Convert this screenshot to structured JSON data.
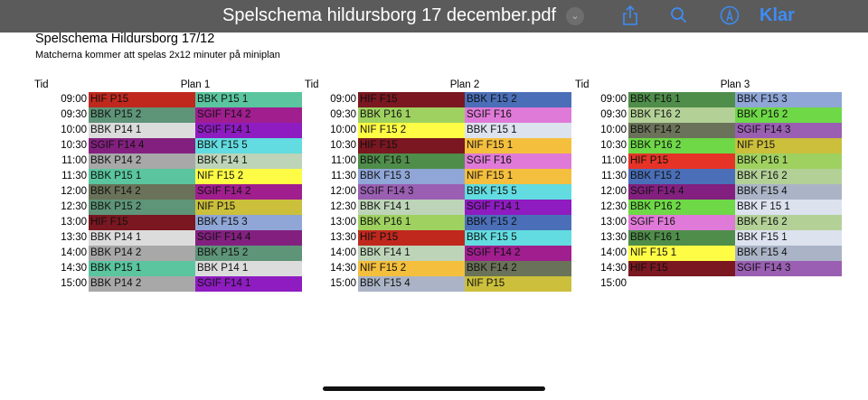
{
  "topbar": {
    "title": "Spelschema hildursborg 17 december.pdf",
    "klar": "Klar",
    "icons": [
      "chevron-down-icon",
      "share-icon",
      "search-icon",
      "markup-icon"
    ]
  },
  "document": {
    "title": "Spelschema Hildursborg 17/12",
    "subtitle": "Matcherna kommer att spelas 2x12 minuter på miniplan",
    "tid_label": "Tid"
  },
  "plans": [
    {
      "name": "Plan 1",
      "rows": [
        {
          "time": "09:00",
          "a": {
            "t": "HIF P15",
            "c": "#c0281e"
          },
          "b": {
            "t": "BBK P15 1",
            "c": "#5ac59f"
          }
        },
        {
          "time": "09:30",
          "a": {
            "t": "BBK P15 2",
            "c": "#5e9478"
          },
          "b": {
            "t": "SGIF F14 2",
            "c": "#a01e8e"
          }
        },
        {
          "time": "10:00",
          "a": {
            "t": "BBK P14 1",
            "c": "#dcdcdc"
          },
          "b": {
            "t": "SGIF F14 1",
            "c": "#8e1cc0"
          }
        },
        {
          "time": "10:30",
          "a": {
            "t": "SGIF F14 4",
            "c": "#83207f"
          },
          "b": {
            "t": "BBK F15 5",
            "c": "#62dce0"
          }
        },
        {
          "time": "11:00",
          "a": {
            "t": "BBK P14 2",
            "c": "#a8a8a8"
          },
          "b": {
            "t": "BBK F14 1",
            "c": "#bdd4b8"
          }
        },
        {
          "time": "11:30",
          "a": {
            "t": "BBK P15 1",
            "c": "#5ac59f"
          },
          "b": {
            "t": "NIF F15 2",
            "c": "#fffc45"
          }
        },
        {
          "time": "12:00",
          "a": {
            "t": "BBK F14 2",
            "c": "#6a7359"
          },
          "b": {
            "t": "SGIF F14 2",
            "c": "#a01e8e"
          }
        },
        {
          "time": "12:30",
          "a": {
            "t": "BBK P15 2",
            "c": "#5e9478"
          },
          "b": {
            "t": "NIF P15",
            "c": "#cbbf3c"
          }
        },
        {
          "time": "13:00",
          "a": {
            "t": "HIF F15",
            "c": "#7a1720"
          },
          "b": {
            "t": "BBK F15 3",
            "c": "#8fa6d6"
          }
        },
        {
          "time": "13:30",
          "a": {
            "t": "BBK P14 1",
            "c": "#dcdcdc"
          },
          "b": {
            "t": "SGIF F14 4",
            "c": "#83207f"
          }
        },
        {
          "time": "14:00",
          "a": {
            "t": "BBK P14 2",
            "c": "#a8a8a8"
          },
          "b": {
            "t": "BBK P15 2",
            "c": "#5e9478"
          }
        },
        {
          "time": "14:30",
          "a": {
            "t": "BBK P15 1",
            "c": "#5ac59f"
          },
          "b": {
            "t": "BBK P14 1",
            "c": "#dcdcdc"
          }
        },
        {
          "time": "15:00",
          "a": {
            "t": "BBK P14 2",
            "c": "#a8a8a8"
          },
          "b": {
            "t": "SGIF F14 1",
            "c": "#8e1cc0"
          }
        }
      ]
    },
    {
      "name": "Plan 2",
      "rows": [
        {
          "time": "09:00",
          "a": {
            "t": "HIF F15",
            "c": "#7a1720"
          },
          "b": {
            "t": "BBK F15 2",
            "c": "#4a6fb8"
          }
        },
        {
          "time": "09:30",
          "a": {
            "t": "BBK P16 1",
            "c": "#9fd160"
          },
          "b": {
            "t": "SGIF F16",
            "c": "#e07ad8"
          }
        },
        {
          "time": "10:00",
          "a": {
            "t": "NIF F15 2",
            "c": "#fffc45"
          },
          "b": {
            "t": "BBK F15 1",
            "c": "#dde2ef"
          }
        },
        {
          "time": "10:30",
          "a": {
            "t": "HIF F15",
            "c": "#7a1720"
          },
          "b": {
            "t": "NIF F15 1",
            "c": "#f5bf3e"
          }
        },
        {
          "time": "11:00",
          "a": {
            "t": "BBK F16 1",
            "c": "#4f8d4a"
          },
          "b": {
            "t": "SGIF F16",
            "c": "#e07ad8"
          }
        },
        {
          "time": "11:30",
          "a": {
            "t": "BBK F15 3",
            "c": "#8fa6d6"
          },
          "b": {
            "t": "NIF F15 1",
            "c": "#f5bf3e"
          }
        },
        {
          "time": "12:00",
          "a": {
            "t": "SGIF F14 3",
            "c": "#9a5fb2"
          },
          "b": {
            "t": "BBK F15 5",
            "c": "#62dce0"
          }
        },
        {
          "time": "12:30",
          "a": {
            "t": "BBK F14 1",
            "c": "#bdd4b8"
          },
          "b": {
            "t": "SGIF F14 1",
            "c": "#8e1cc0"
          }
        },
        {
          "time": "13:00",
          "a": {
            "t": "BBK P16 1",
            "c": "#9fd160"
          },
          "b": {
            "t": "BBK F15 2",
            "c": "#4a6fb8"
          }
        },
        {
          "time": "13:30",
          "a": {
            "t": "HIF P15",
            "c": "#c0281e"
          },
          "b": {
            "t": "BBK F15 5",
            "c": "#62dce0"
          }
        },
        {
          "time": "14:00",
          "a": {
            "t": "BBK F14 1",
            "c": "#bdd4b8"
          },
          "b": {
            "t": "SGIF F14 2",
            "c": "#a01e8e"
          }
        },
        {
          "time": "14:30",
          "a": {
            "t": "NIF F15 2",
            "c": "#f5bf3e"
          },
          "b": {
            "t": "BBK F14 2",
            "c": "#6a7359"
          }
        },
        {
          "time": "15:00",
          "a": {
            "t": "BBK F15 4",
            "c": "#aab4c6"
          },
          "b": {
            "t": "NIF P15",
            "c": "#cbbf3c"
          }
        }
      ]
    },
    {
      "name": "Plan 3",
      "rows": [
        {
          "time": "09:00",
          "a": {
            "t": "BBK F16 1",
            "c": "#4f8d4a"
          },
          "b": {
            "t": "BBK F15 3",
            "c": "#8fa6d6"
          }
        },
        {
          "time": "09:30",
          "a": {
            "t": "BBK F16 2",
            "c": "#b3d197"
          },
          "b": {
            "t": "BBK P16 2",
            "c": "#6ed847"
          }
        },
        {
          "time": "10:00",
          "a": {
            "t": "BBK F14 2",
            "c": "#6a7359"
          },
          "b": {
            "t": "SGIF F14 3",
            "c": "#9a5fb2"
          }
        },
        {
          "time": "10:30",
          "a": {
            "t": "BBK P16 2",
            "c": "#6ed847"
          },
          "b": {
            "t": "NIF P15",
            "c": "#cbbf3c"
          }
        },
        {
          "time": "11:00",
          "a": {
            "t": "HIF P15",
            "c": "#e53427"
          },
          "b": {
            "t": "BBK P16 1",
            "c": "#9fd160"
          }
        },
        {
          "time": "11:30",
          "a": {
            "t": "BBK F15 2",
            "c": "#4a6fb8"
          },
          "b": {
            "t": "BBK F16 2",
            "c": "#b3d197"
          }
        },
        {
          "time": "12:00",
          "a": {
            "t": "SGIF F14 4",
            "c": "#83207f"
          },
          "b": {
            "t": "BBK F15 4",
            "c": "#aab4c6"
          }
        },
        {
          "time": "12:30",
          "a": {
            "t": "BBK P16 2",
            "c": "#6ed847"
          },
          "b": {
            "t": "BBK F 15 1",
            "c": "#dde2ef"
          }
        },
        {
          "time": "13:00",
          "a": {
            "t": "SGIF F16",
            "c": "#e07ad8"
          },
          "b": {
            "t": "BBK F16 2",
            "c": "#b3d197"
          }
        },
        {
          "time": "13:30",
          "a": {
            "t": "BBK F16 1",
            "c": "#4f8d4a"
          },
          "b": {
            "t": "BBK F15 1",
            "c": "#dde2ef"
          }
        },
        {
          "time": "14:00",
          "a": {
            "t": "NIF F15 1",
            "c": "#fffc45"
          },
          "b": {
            "t": "BBK F15 4",
            "c": "#aab4c6"
          }
        },
        {
          "time": "14:30",
          "a": {
            "t": "HIF F15",
            "c": "#7a1720"
          },
          "b": {
            "t": "SGIF F14 3",
            "c": "#9a5fb2"
          }
        },
        {
          "time": "15:00"
        }
      ]
    }
  ]
}
